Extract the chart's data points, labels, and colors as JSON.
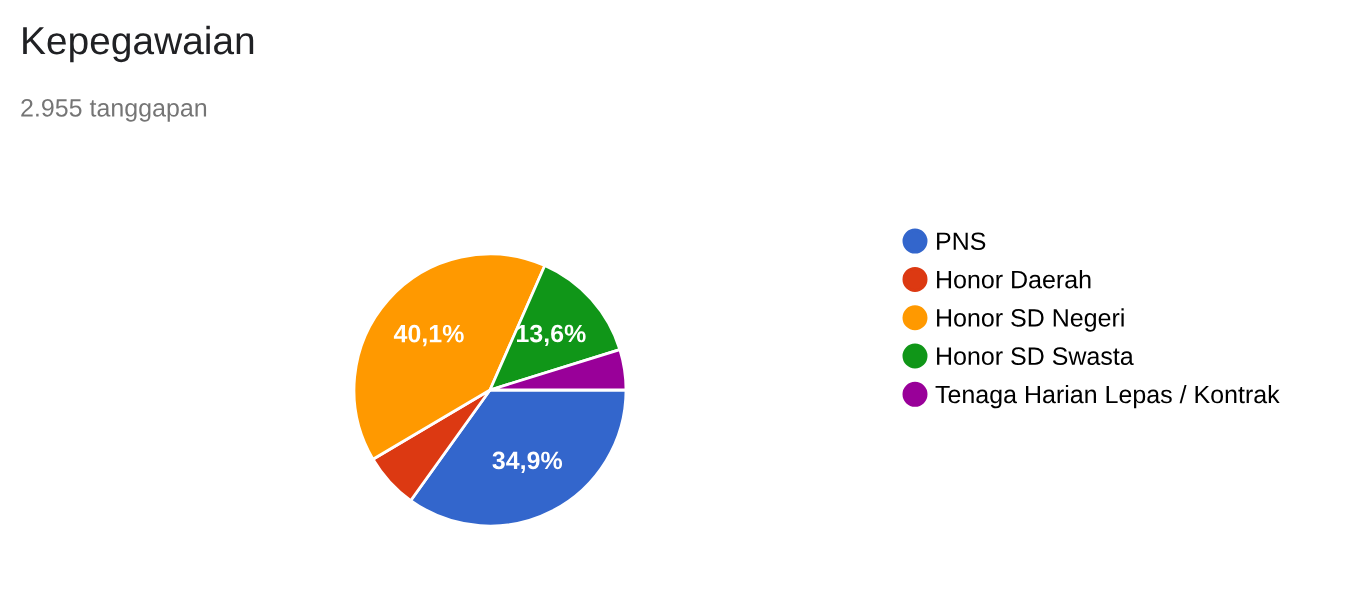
{
  "chart_data": {
    "type": "pie",
    "title": "Kepegawaian",
    "subtitle": "2.955 tanggapan",
    "categories": [
      "PNS",
      "Honor Daerah",
      "Honor SD Negeri",
      "Honor SD Swasta",
      "Tenaga Harian Lepas / Kontrak"
    ],
    "values": [
      34.9,
      6.6,
      40.1,
      13.6,
      4.8
    ],
    "colors": [
      "#3366cc",
      "#dc3912",
      "#ff9900",
      "#109618",
      "#990099"
    ],
    "value_labels": [
      "34,9%",
      null,
      "40,1%",
      "13,6%",
      null
    ],
    "legend": "right"
  }
}
